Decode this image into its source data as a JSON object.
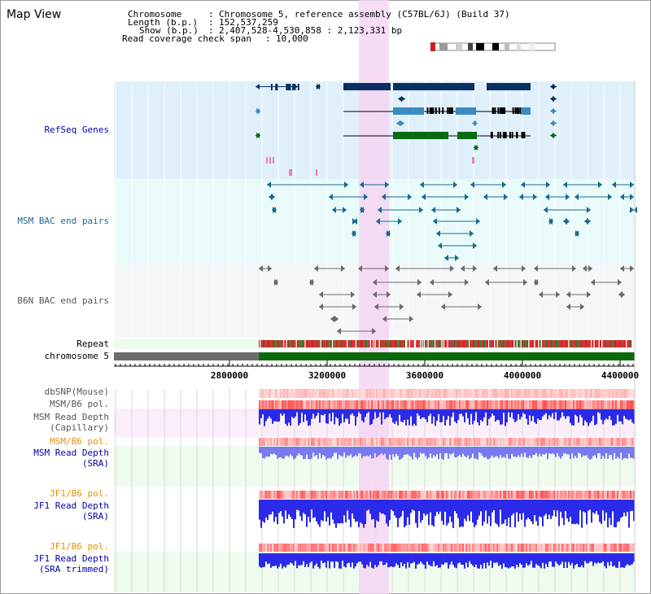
{
  "title": "Map View",
  "info": {
    "chromosome_label": "Chromosome",
    "chromosome_value": "Chromosome 5, reference assembly (C57BL/6J) (Build 37)",
    "length_label": "Length (b.p.)",
    "length_value": "152,537,259",
    "show_label": "Show (b.p.)",
    "show_value": "2,407,528-4,530,858 : 2,123,331 bp",
    "span_label": "Read coverage check span",
    "span_value": "10,000"
  },
  "tracks": {
    "refseq": "RefSeq Genes",
    "msm_bac": "MSM BAC end pairs",
    "b6n_bac": "B6N BAC end pairs",
    "repeat": "Repeat",
    "chromosome": "chromosome 5",
    "dbsnp": "dbSNP(Mouse)",
    "msm_pol1": "MSM/B6 pol.",
    "msm_depth_cap_1": "MSM Read Depth",
    "msm_depth_cap_2": "(Capillary)",
    "msm_pol2": "MSM/B6 pol.",
    "msm_depth_sra_1": "MSM Read Depth",
    "msm_depth_sra_2": "(SRA)",
    "jf1_pol1": "JF1/B6 pol.",
    "jf1_depth_sra_1": "JF1 Read Depth",
    "jf1_depth_sra_2": "(SRA)",
    "jf1_pol2": "JF1/B6 pol.",
    "jf1_depth_trim_1": "JF1 Read Depth",
    "jf1_depth_trim_2": "(SRA trimmed)"
  },
  "axis": {
    "ticks": [
      "2800000",
      "3200000",
      "3600000",
      "4000000",
      "4400000"
    ]
  },
  "colors": {
    "refseq_bg": "#dff0fa",
    "msm_bg": "#e8fbfa",
    "b6n_bg": "#f4f6f8",
    "highlight": "#f5d3f3",
    "gene_dark": "#0b2e63",
    "gene_mid": "#3a8bbf",
    "gene_green": "#0a6b14",
    "msm_bac": "#1a6a90",
    "b6n_bac": "#6a6a6a",
    "repeat_red": "#d22020",
    "chrom_grey": "#6c6c6c",
    "chrom_green": "#0b6b0b",
    "depth_blue": "#2a2ae8",
    "depth_lightblue": "#7a7af0",
    "label_blue": "#0000aa",
    "label_orange": "#e89000",
    "label_teal": "#1a6a90",
    "label_grey": "#555555"
  }
}
